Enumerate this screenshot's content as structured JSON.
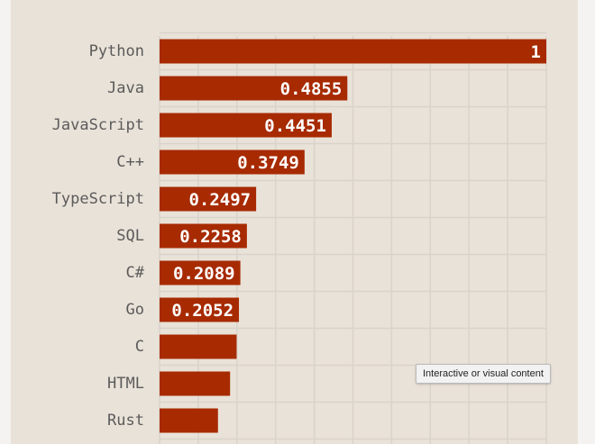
{
  "chart_data": {
    "type": "bar",
    "orientation": "horizontal",
    "title": "",
    "xlabel": "",
    "ylabel": "",
    "xlim": [
      0,
      1
    ],
    "grid": true,
    "categories": [
      "Python",
      "Java",
      "JavaScript",
      "C++",
      "TypeScript",
      "SQL",
      "C#",
      "Go",
      "C",
      "HTML",
      "Rust"
    ],
    "values": [
      1,
      0.4855,
      0.4451,
      0.3749,
      0.2497,
      0.2258,
      0.2089,
      0.2052,
      0.1992,
      0.1823,
      0.151
    ],
    "data_labels": [
      "1",
      "0.4855",
      "0.4451",
      "0.3749",
      "0.2497",
      "0.2258",
      "0.2089",
      "0.2052",
      "",
      "",
      ""
    ]
  },
  "colors": {
    "bar": "#a72a00",
    "background": "#e9e2d8",
    "grid": "#d9d3cb"
  },
  "tooltip": {
    "text": "Interactive or visual content"
  }
}
